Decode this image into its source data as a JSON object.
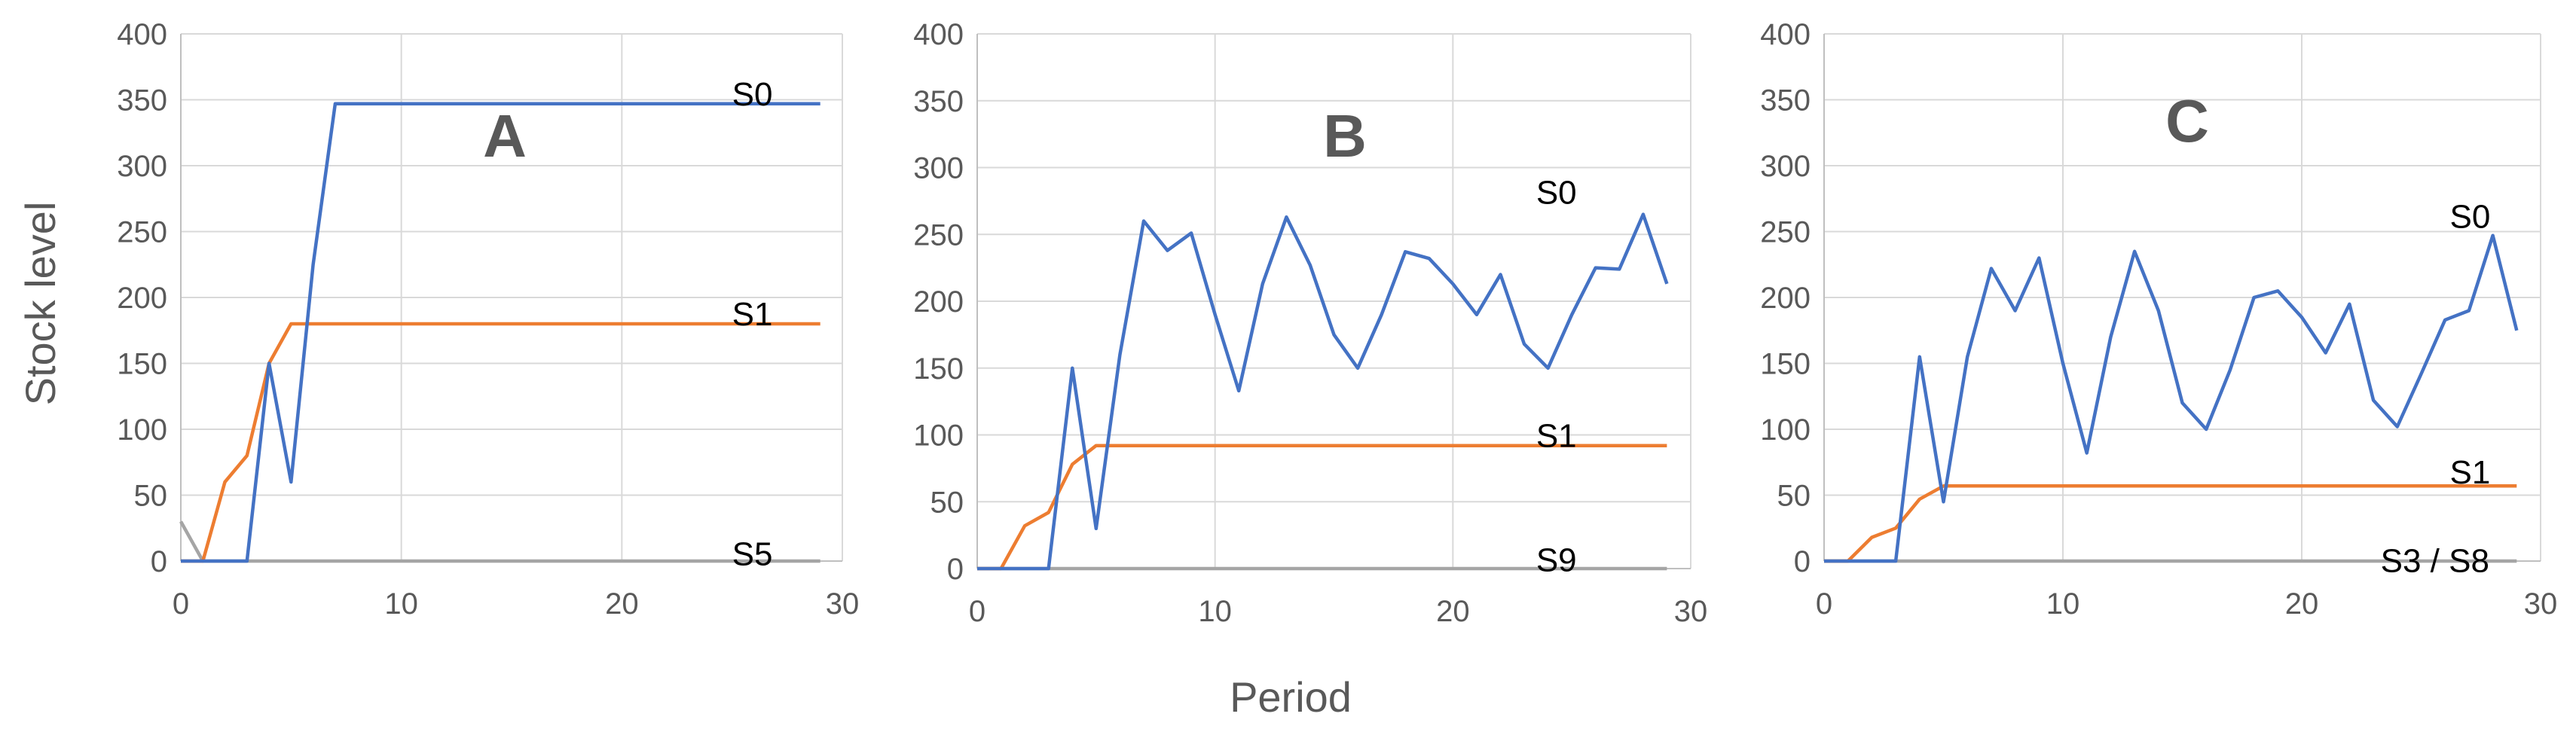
{
  "figure": {
    "ylabel": "Stock level",
    "xlabel": "Period"
  },
  "colors": {
    "S0": "#4472c4",
    "S1": "#ed7d31",
    "S5": "#a5a5a5",
    "S9": "#a5a5a5",
    "S3/S8": "#a5a5a5"
  },
  "chart_data": [
    {
      "type": "line",
      "panel": "A",
      "title": "A",
      "xlim": [
        0,
        30
      ],
      "ylim": [
        0,
        400
      ],
      "xticks": [
        0,
        10,
        20,
        30
      ],
      "yticks": [
        0,
        50,
        100,
        150,
        200,
        250,
        300,
        350,
        400
      ],
      "grid": true,
      "series": [
        {
          "name": "S0",
          "color": "#4472c4",
          "x": [
            0,
            1,
            2,
            3,
            4,
            5,
            6,
            7,
            8,
            9,
            10,
            11,
            12,
            13,
            14,
            15,
            16,
            17,
            18,
            19,
            20,
            21,
            22,
            23,
            24,
            25,
            26,
            27,
            28,
            29
          ],
          "y": [
            0,
            0,
            0,
            0,
            150,
            60,
            225,
            347,
            347,
            347,
            347,
            347,
            347,
            347,
            347,
            347,
            347,
            347,
            347,
            347,
            347,
            347,
            347,
            347,
            347,
            347,
            347,
            347,
            347,
            347
          ]
        },
        {
          "name": "S1",
          "color": "#ed7d31",
          "x": [
            0,
            1,
            2,
            3,
            4,
            5,
            6,
            7,
            8,
            9,
            10,
            11,
            12,
            13,
            14,
            15,
            16,
            17,
            18,
            19,
            20,
            21,
            22,
            23,
            24,
            25,
            26,
            27,
            28,
            29
          ],
          "y": [
            0,
            0,
            60,
            80,
            150,
            180,
            180,
            180,
            180,
            180,
            180,
            180,
            180,
            180,
            180,
            180,
            180,
            180,
            180,
            180,
            180,
            180,
            180,
            180,
            180,
            180,
            180,
            180,
            180,
            180
          ]
        },
        {
          "name": "S5",
          "color": "#a5a5a5",
          "x": [
            0,
            1,
            2,
            3,
            4,
            5,
            6,
            7,
            8,
            9,
            10,
            11,
            12,
            13,
            14,
            15,
            16,
            17,
            18,
            19,
            20,
            21,
            22,
            23,
            24,
            25,
            26,
            27,
            28,
            29
          ],
          "y": [
            30,
            0,
            0,
            0,
            0,
            0,
            0,
            0,
            0,
            0,
            0,
            0,
            0,
            0,
            0,
            0,
            0,
            0,
            0,
            0,
            0,
            0,
            0,
            0,
            0,
            0,
            0,
            0,
            0,
            0
          ]
        }
      ],
      "series_labels": [
        {
          "text": "S0",
          "x": 25,
          "y": 355
        },
        {
          "text": "S1",
          "x": 25,
          "y": 188
        },
        {
          "text": "S5",
          "x": 25,
          "y": 6
        }
      ]
    },
    {
      "type": "line",
      "panel": "B",
      "title": "B",
      "xlim": [
        0,
        30
      ],
      "ylim": [
        0,
        400
      ],
      "xticks": [
        0,
        10,
        20,
        30
      ],
      "yticks": [
        0,
        50,
        100,
        150,
        200,
        250,
        300,
        350,
        400
      ],
      "grid": true,
      "series": [
        {
          "name": "S0",
          "color": "#4472c4",
          "x": [
            0,
            1,
            2,
            3,
            4,
            5,
            6,
            7,
            8,
            9,
            10,
            11,
            12,
            13,
            14,
            15,
            16,
            17,
            18,
            19,
            20,
            21,
            22,
            23,
            24,
            25,
            26,
            27,
            28,
            29
          ],
          "y": [
            0,
            0,
            0,
            0,
            150,
            30,
            160,
            260,
            238,
            251,
            190,
            133,
            213,
            263,
            227,
            175,
            150,
            190,
            237,
            232,
            213,
            190,
            220,
            168,
            150,
            190,
            225,
            224,
            265,
            213
          ]
        },
        {
          "name": "S1",
          "color": "#ed7d31",
          "x": [
            0,
            1,
            2,
            3,
            4,
            5,
            6,
            7,
            8,
            9,
            10,
            11,
            12,
            13,
            14,
            15,
            16,
            17,
            18,
            19,
            20,
            21,
            22,
            23,
            24,
            25,
            26,
            27,
            28,
            29
          ],
          "y": [
            0,
            0,
            32,
            42,
            78,
            92,
            92,
            92,
            92,
            92,
            92,
            92,
            92,
            92,
            92,
            92,
            92,
            92,
            92,
            92,
            92,
            92,
            92,
            92,
            92,
            92,
            92,
            92,
            92,
            92
          ]
        },
        {
          "name": "S9",
          "color": "#a5a5a5",
          "x": [
            0,
            1,
            2,
            3,
            4,
            5,
            6,
            7,
            8,
            9,
            10,
            11,
            12,
            13,
            14,
            15,
            16,
            17,
            18,
            19,
            20,
            21,
            22,
            23,
            24,
            25,
            26,
            27,
            28,
            29
          ],
          "y": [
            0,
            0,
            0,
            0,
            0,
            0,
            0,
            0,
            0,
            0,
            0,
            0,
            0,
            0,
            0,
            0,
            0,
            0,
            0,
            0,
            0,
            0,
            0,
            0,
            0,
            0,
            0,
            0,
            0,
            0
          ]
        }
      ],
      "series_labels": [
        {
          "text": "S0",
          "x": 23.5,
          "y": 282
        },
        {
          "text": "S1",
          "x": 23.5,
          "y": 100
        },
        {
          "text": "S9",
          "x": 23.5,
          "y": 7
        }
      ]
    },
    {
      "type": "line",
      "panel": "C",
      "title": "C",
      "xlim": [
        0,
        30
      ],
      "ylim": [
        0,
        400
      ],
      "xticks": [
        0,
        10,
        20,
        30
      ],
      "yticks": [
        0,
        50,
        100,
        150,
        200,
        250,
        300,
        350,
        400
      ],
      "grid": true,
      "series": [
        {
          "name": "S0",
          "color": "#4472c4",
          "x": [
            0,
            1,
            2,
            3,
            4,
            5,
            6,
            7,
            8,
            9,
            10,
            11,
            12,
            13,
            14,
            15,
            16,
            17,
            18,
            19,
            20,
            21,
            22,
            23,
            24,
            25,
            26,
            27,
            28,
            29
          ],
          "y": [
            0,
            0,
            0,
            0,
            155,
            45,
            155,
            222,
            190,
            230,
            150,
            82,
            170,
            235,
            190,
            120,
            100,
            145,
            200,
            205,
            185,
            158,
            195,
            122,
            102,
            142,
            183,
            190,
            247,
            175
          ]
        },
        {
          "name": "S1",
          "color": "#ed7d31",
          "x": [
            0,
            1,
            2,
            3,
            4,
            5,
            6,
            7,
            8,
            9,
            10,
            11,
            12,
            13,
            14,
            15,
            16,
            17,
            18,
            19,
            20,
            21,
            22,
            23,
            24,
            25,
            26,
            27,
            28,
            29
          ],
          "y": [
            0,
            0,
            18,
            25,
            47,
            57,
            57,
            57,
            57,
            57,
            57,
            57,
            57,
            57,
            57,
            57,
            57,
            57,
            57,
            57,
            57,
            57,
            57,
            57,
            57,
            57,
            57,
            57,
            57,
            57
          ]
        },
        {
          "name": "S3 / S8",
          "color": "#a5a5a5",
          "x": [
            0,
            1,
            2,
            3,
            4,
            5,
            6,
            7,
            8,
            9,
            10,
            11,
            12,
            13,
            14,
            15,
            16,
            17,
            18,
            19,
            20,
            21,
            22,
            23,
            24,
            25,
            26,
            27,
            28,
            29
          ],
          "y": [
            0,
            0,
            0,
            0,
            0,
            0,
            0,
            0,
            0,
            0,
            0,
            0,
            0,
            0,
            0,
            0,
            0,
            0,
            0,
            0,
            0,
            0,
            0,
            0,
            0,
            0,
            0,
            0,
            0,
            0
          ]
        }
      ],
      "series_labels": [
        {
          "text": "S0",
          "x": 26.2,
          "y": 262
        },
        {
          "text": "S1",
          "x": 26.2,
          "y": 68
        },
        {
          "text": "S3 / S8",
          "x": 23.3,
          "y": 1
        }
      ]
    }
  ]
}
